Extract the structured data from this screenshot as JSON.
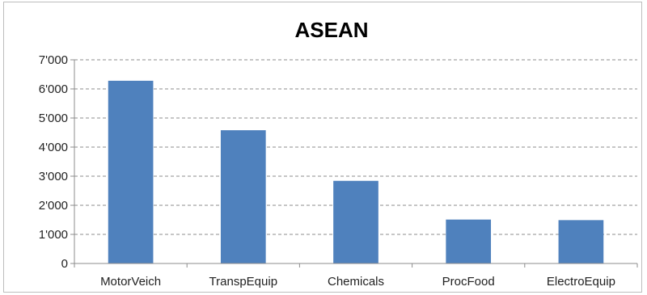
{
  "chart_data": {
    "type": "bar",
    "title": "ASEAN",
    "categories": [
      "MotorVeich",
      "TranspEquip",
      "Chemicals",
      "ProcFood",
      "ElectroEquip"
    ],
    "values": [
      6280,
      4580,
      2840,
      1510,
      1490
    ],
    "yticks": [
      "0",
      "1'000",
      "2'000",
      "3'000",
      "4'000",
      "5'000",
      "6'000",
      "7'000"
    ],
    "ylim": [
      0,
      7000
    ],
    "xlabel": "",
    "ylabel": "",
    "grid": true,
    "legend": "none",
    "bar_color": "#4f81bd"
  }
}
